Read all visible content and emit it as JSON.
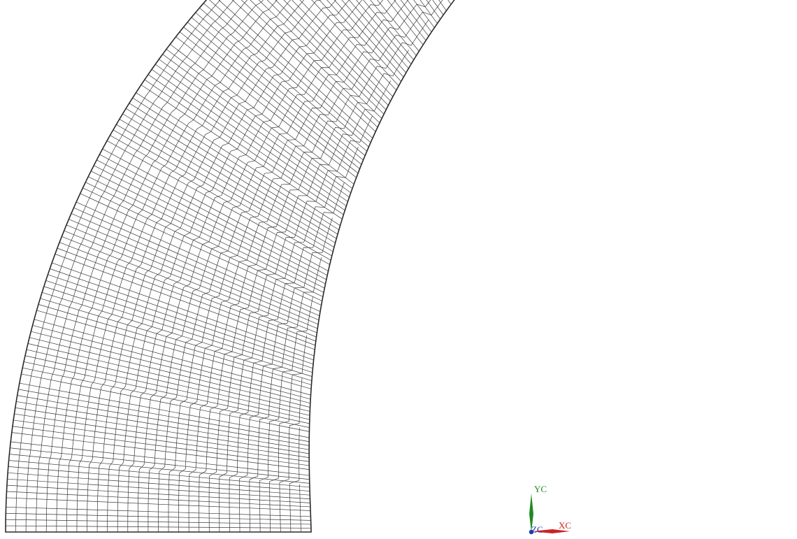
{
  "viewport": {
    "background": "#ffffff",
    "mesh_color": "#3a3a3a",
    "boundary_color": "#2a2a2a",
    "element_type": "quadrilateral",
    "mesh_shape": "curved annular sector"
  },
  "triad": {
    "x_axis": {
      "label": "XC",
      "color": "#cc2222"
    },
    "y_axis": {
      "label": "YC",
      "color": "#1f8a1f"
    },
    "z_axis": {
      "label": "ZC",
      "color": "#1a3fb0"
    }
  }
}
